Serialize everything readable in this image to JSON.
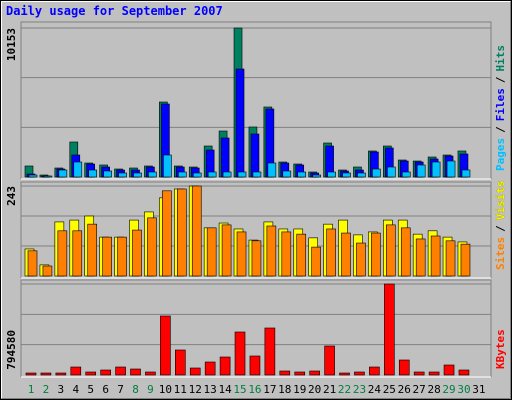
{
  "chart_data": [
    {
      "type": "bar",
      "title": "Daily usage for September 2007",
      "ylim": [
        0,
        10153
      ],
      "yticks": [
        10153
      ],
      "legend_separator": "/",
      "series": [
        {
          "name": "Hits",
          "color": "#008060",
          "values": [
            750,
            136,
            613,
            2385,
            954,
            818,
            545,
            613,
            750,
            5110,
            750,
            681,
            2112,
            3134,
            10153,
            3407,
            4770,
            1022,
            886,
            341,
            2317,
            477,
            681,
            1772,
            2112,
            1158,
            1090,
            1363,
            1499,
            1772,
            0
          ]
        },
        {
          "name": "Files",
          "color": "#0000ff",
          "values": [
            204,
            68,
            545,
            1499,
            886,
            681,
            477,
            477,
            681,
            4974,
            681,
            613,
            1840,
            2658,
            7359,
            2930,
            4634,
            954,
            818,
            273,
            2112,
            409,
            477,
            1704,
            1976,
            1090,
            1022,
            1227,
            1431,
            1567,
            0
          ]
        },
        {
          "name": "Pages",
          "color": "#00c0ff",
          "values": [
            136,
            68,
            477,
            1022,
            477,
            409,
            273,
            273,
            341,
            1499,
            341,
            273,
            341,
            341,
            341,
            341,
            954,
            409,
            341,
            136,
            341,
            273,
            273,
            545,
            681,
            341,
            818,
            1022,
            1090,
            477,
            0
          ]
        }
      ]
    },
    {
      "type": "bar",
      "ylim": [
        0,
        243
      ],
      "yticks": [
        243
      ],
      "legend_separator": "/",
      "series": [
        {
          "name": "Visits",
          "color": "#ffff00",
          "values": [
            73,
            30,
            146,
            151,
            162,
            105,
            105,
            151,
            173,
            211,
            235,
            243,
            130,
            143,
            127,
            97,
            146,
            127,
            127,
            103,
            140,
            151,
            111,
            119,
            151,
            151,
            113,
            122,
            105,
            92,
            0
          ]
        },
        {
          "name": "Sites",
          "color": "#ff8000",
          "values": [
            68,
            27,
            122,
            122,
            140,
            105,
            105,
            124,
            157,
            230,
            235,
            243,
            130,
            138,
            119,
            95,
            135,
            119,
            113,
            78,
            127,
            116,
            89,
            116,
            138,
            130,
            100,
            108,
            95,
            86,
            0
          ]
        }
      ]
    },
    {
      "type": "bar",
      "ylim": [
        0,
        794580
      ],
      "yticks": [
        794580
      ],
      "categories": [
        "1",
        "2",
        "3",
        "4",
        "5",
        "6",
        "7",
        "8",
        "9",
        "10",
        "11",
        "12",
        "13",
        "14",
        "15",
        "16",
        "17",
        "18",
        "19",
        "20",
        "21",
        "22",
        "23",
        "24",
        "25",
        "26",
        "27",
        "28",
        "29",
        "30",
        "31"
      ],
      "category_colors": [
        "#008040",
        "#008040",
        "#000000",
        "#000000",
        "#000000",
        "#000000",
        "#000000",
        "#008040",
        "#008040",
        "#000000",
        "#000000",
        "#000000",
        "#000000",
        "#000000",
        "#008040",
        "#008040",
        "#000000",
        "#000000",
        "#000000",
        "#000000",
        "#000000",
        "#008040",
        "#008040",
        "#000000",
        "#000000",
        "#000000",
        "#000000",
        "#000000",
        "#008040",
        "#008040",
        "#000000"
      ],
      "series": [
        {
          "name": "KBytes",
          "color": "#ff0000",
          "values": [
            17464,
            17464,
            17464,
            69856,
            26196,
            43660,
            69856,
            52392,
            26196,
            515188,
            218300,
            61124,
            113516,
            157176,
            375476,
            165908,
            410404,
            34928,
            26196,
            34928,
            253228,
            17464,
            26196,
            69856,
            794580,
            130980,
            26196,
            26196,
            87320,
            43660,
            0
          ]
        }
      ]
    }
  ]
}
